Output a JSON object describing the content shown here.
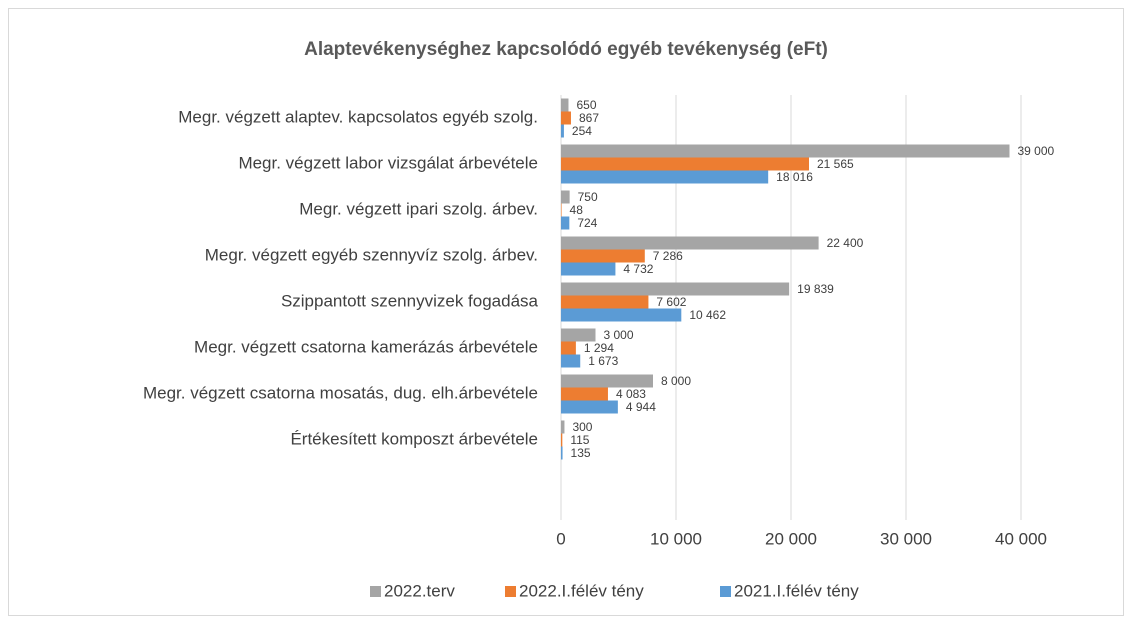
{
  "chart_data": {
    "type": "bar",
    "orientation": "horizontal",
    "title": "Alaptevékenységhez kapcsolódó egyéb tevékenység (eFt)",
    "categories": [
      "Megr. végzett alaptev. kapcsolatos egyéb szolg.",
      "Megr. végzett labor vizsgálat árbevétele",
      "Megr. végzett ipari szolg. árbev.",
      "Megr. végzett egyéb szennyvíz szolg. árbev.",
      "Szippantott szennyvizek fogadása",
      "Megr. végzett csatorna kamerázás árbevétele",
      "Megr. végzett csatorna mosatás, dug. elh.árbevétele",
      "Értékesített komposzt árbevétele"
    ],
    "series": [
      {
        "name": "2022.terv",
        "color": "#a5a5a5",
        "values": [
          650,
          39000,
          750,
          22400,
          19839,
          3000,
          8000,
          300
        ],
        "value_labels": [
          "650",
          "39 000",
          "750",
          "22 400",
          "19 839",
          "3 000",
          "8 000",
          "300"
        ]
      },
      {
        "name": "2022.I.félév tény",
        "color": "#ed7d31",
        "values": [
          867,
          21565,
          48,
          7286,
          7602,
          1294,
          4083,
          115
        ],
        "value_labels": [
          "867",
          "21 565",
          "48",
          "7 286",
          "7 602",
          "1 294",
          "4 083",
          "115"
        ]
      },
      {
        "name": "2021.I.félév tény",
        "color": "#5b9bd5",
        "values": [
          254,
          18016,
          724,
          4732,
          10462,
          1673,
          4944,
          135
        ],
        "value_labels": [
          "254",
          "18 016",
          "724",
          "4 732",
          "10 462",
          "1 673",
          "4 944",
          "135"
        ]
      }
    ],
    "xlim": [
      0,
      40000
    ],
    "xticks": [
      0,
      {
        "value": 10000,
        "label": "10 000"
      },
      {
        "value": 20000,
        "label": "20 000"
      },
      {
        "value": 30000,
        "label": "30 000"
      },
      {
        "value": 40000,
        "label": "40 000"
      }
    ],
    "grid": true,
    "legend": "bottom"
  }
}
